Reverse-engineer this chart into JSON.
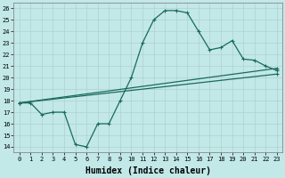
{
  "xlabel": "Humidex (Indice chaleur)",
  "background_color": "#c2e8e8",
  "grid_color": "#b0d0d0",
  "line_color": "#1a6b5a",
  "xlim": [
    -0.5,
    23.5
  ],
  "ylim": [
    13.5,
    26.5
  ],
  "xticks": [
    0,
    1,
    2,
    3,
    4,
    5,
    6,
    7,
    8,
    9,
    10,
    11,
    12,
    13,
    14,
    15,
    16,
    17,
    18,
    19,
    20,
    21,
    22,
    23
  ],
  "yticks": [
    14,
    15,
    16,
    17,
    18,
    19,
    20,
    21,
    22,
    23,
    24,
    25,
    26
  ],
  "line1_x": [
    0,
    1,
    2,
    3,
    4,
    5,
    6,
    7,
    8,
    9,
    10,
    11,
    12,
    13,
    14,
    15,
    16,
    17,
    18,
    19,
    20,
    21,
    22,
    23
  ],
  "line1_y": [
    17.8,
    17.8,
    16.8,
    17.0,
    17.0,
    14.2,
    14.0,
    16.0,
    16.0,
    18.0,
    20.0,
    23.0,
    25.0,
    25.8,
    25.8,
    25.6,
    24.0,
    22.4,
    22.6,
    23.2,
    21.6,
    21.5,
    21.0,
    20.6
  ],
  "line2_x": [
    0,
    23
  ],
  "line2_y": [
    17.8,
    20.8
  ],
  "line3_x": [
    0,
    23
  ],
  "line3_y": [
    17.8,
    20.3
  ],
  "xlabel_fontsize": 7,
  "tick_fontsize": 5,
  "lw": 0.9,
  "marker_size": 3
}
